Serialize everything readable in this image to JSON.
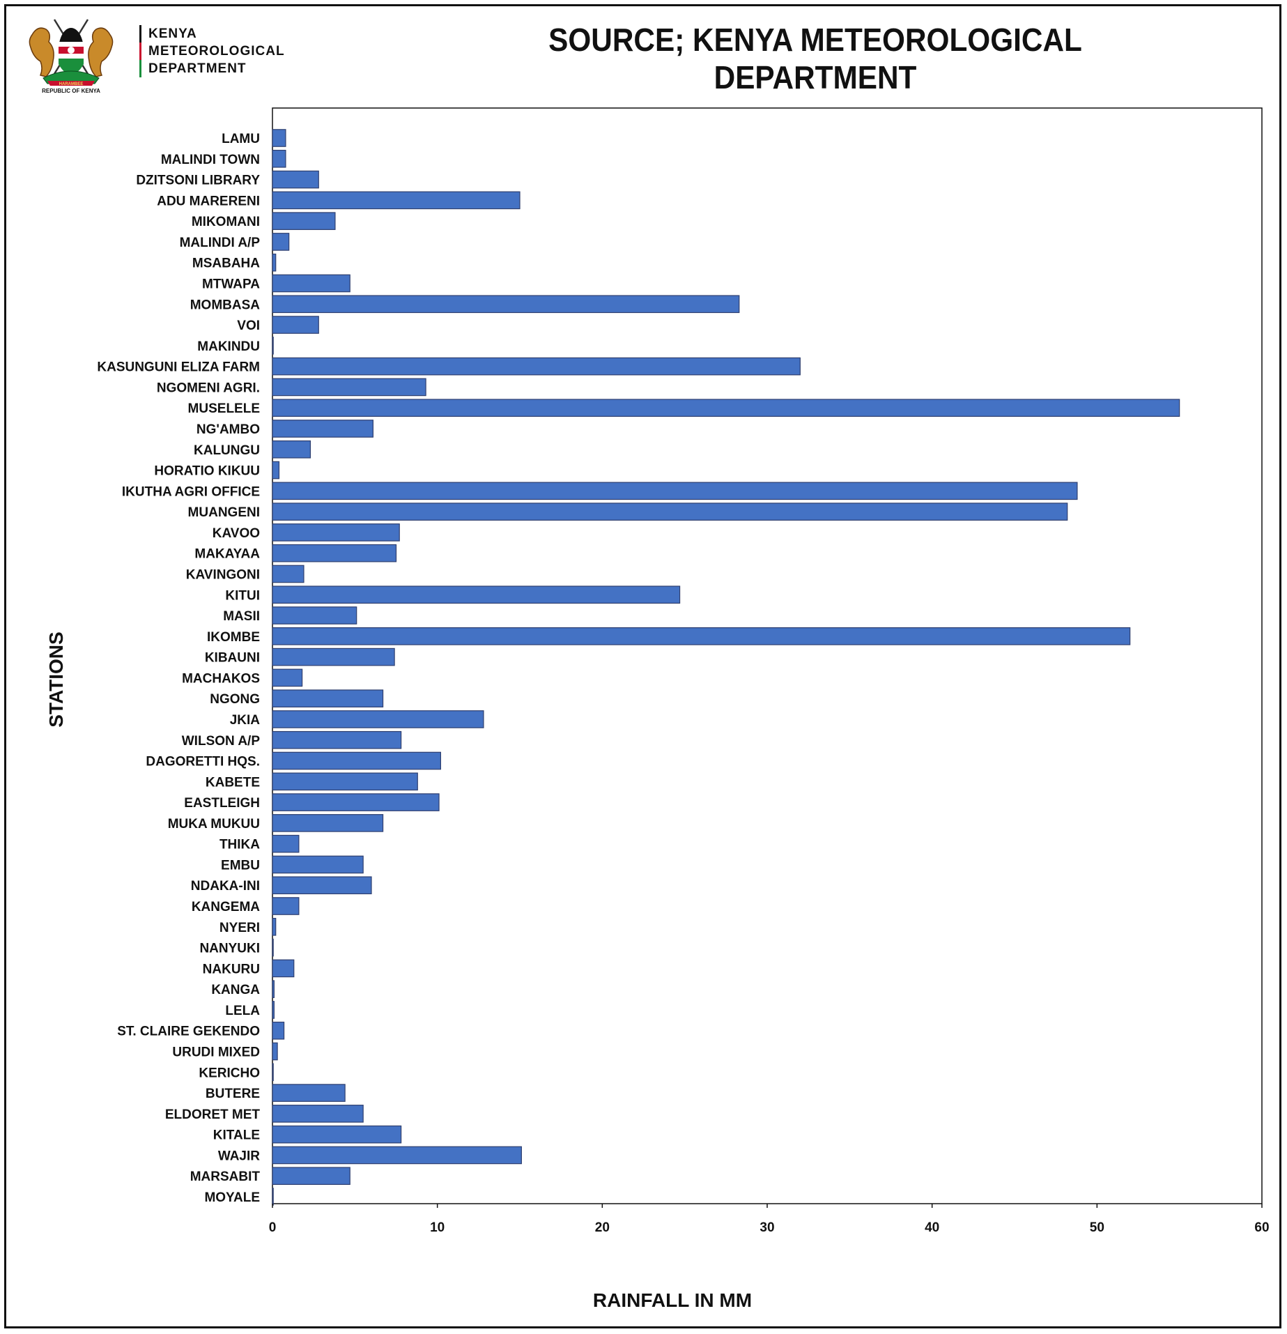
{
  "header": {
    "dept_lines": [
      "KENYA",
      "METEOROLOGICAL",
      "DEPARTMENT"
    ],
    "republic_text": "REPUBLIC OF KENYA",
    "motto_text": "HARAMBEE",
    "source_title": "SOURCE; KENYA METEOROLOGICAL DEPARTMENT",
    "colors": {
      "green": "#1a8f3c",
      "red": "#c8102e",
      "bar": "#4472c4",
      "bar_stroke": "#2f3f6f"
    }
  },
  "chart_data": {
    "type": "bar",
    "orientation": "horizontal",
    "categories": [
      "LAMU",
      "MALINDI TOWN",
      "DZITSONI LIBRARY",
      "ADU MARERENI",
      "MIKOMANI",
      "MALINDI A/P",
      "MSABAHA",
      "MTWAPA",
      "MOMBASA",
      "VOI",
      "MAKINDU",
      "KASUNGUNI ELIZA FARM",
      "NGOMENI AGRI.",
      "MUSELELE",
      "NG'AMBO",
      "KALUNGU",
      "HORATIO KIKUU",
      "IKUTHA AGRI OFFICE",
      "MUANGENI",
      "KAVOO",
      "MAKAYAA",
      "KAVINGONI",
      "KITUI",
      "MASII",
      "IKOMBE",
      "KIBAUNI",
      "MACHAKOS",
      "NGONG",
      "JKIA",
      "WILSON A/P",
      "DAGORETTI HQS.",
      "KABETE",
      "EASTLEIGH",
      "MUKA MUKUU",
      "THIKA",
      "EMBU",
      "NDAKA-INI",
      "KANGEMA",
      "NYERI",
      "NANYUKI",
      "NAKURU",
      "KANGA",
      "LELA",
      "ST. CLAIRE GEKENDO",
      "URUDI MIXED",
      "KERICHO",
      "BUTERE",
      "ELDORET MET",
      "KITALE",
      "WAJIR",
      "MARSABIT",
      "MOYALE"
    ],
    "values": [
      0.8,
      0.8,
      2.8,
      15.0,
      3.8,
      1.0,
      0.2,
      4.7,
      28.3,
      2.8,
      0.05,
      32.0,
      9.3,
      55.0,
      6.1,
      2.3,
      0.4,
      48.8,
      48.2,
      7.7,
      7.5,
      1.9,
      24.7,
      5.1,
      52.0,
      7.4,
      1.8,
      6.7,
      12.8,
      7.8,
      10.2,
      8.8,
      10.1,
      6.7,
      1.6,
      5.5,
      6.0,
      1.6,
      0.2,
      0.05,
      1.3,
      0.1,
      0.1,
      0.7,
      0.3,
      0.05,
      4.4,
      5.5,
      7.8,
      15.1,
      4.7,
      0.05
    ],
    "xlim": [
      0,
      60
    ],
    "xticks": [
      0,
      10,
      20,
      30,
      40,
      50,
      60
    ],
    "xlabel": "RAINFALL IN MM",
    "ylabel": "STATIONS",
    "grid": false,
    "legend": "none"
  }
}
